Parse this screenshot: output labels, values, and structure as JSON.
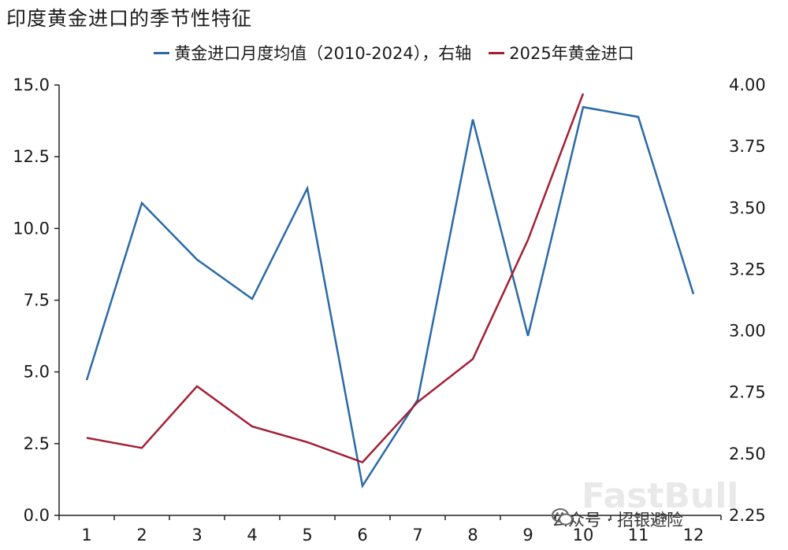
{
  "title": "印度黄金进口的季节性特征",
  "colors": {
    "blue": "#2a6aa8",
    "red": "#a31f34",
    "axis": "#222222"
  },
  "chart_data": {
    "type": "line",
    "categories": [
      "1",
      "2",
      "3",
      "4",
      "5",
      "6",
      "7",
      "8",
      "9",
      "10",
      "11",
      "12"
    ],
    "series": [
      {
        "name": "黄金进口月度均值（2010-2024），右轴",
        "axis": "right",
        "values": [
          2.8,
          3.52,
          3.29,
          3.13,
          3.58,
          2.37,
          2.72,
          3.86,
          2.98,
          3.91,
          3.87,
          3.15
        ]
      },
      {
        "name": "2025年黄金进口",
        "axis": "left",
        "values": [
          2.7,
          2.35,
          4.5,
          3.1,
          2.55,
          1.85,
          3.95,
          5.45,
          9.6,
          14.7,
          null,
          null
        ]
      }
    ],
    "left_axis": {
      "ylim": [
        0,
        15
      ],
      "ticks": [
        "0.0",
        "2.5",
        "5.0",
        "7.5",
        "10.0",
        "12.5",
        "15.0"
      ]
    },
    "right_axis": {
      "ylim": [
        2.25,
        4.0
      ],
      "ticks": [
        "2.25",
        "2.50",
        "2.75",
        "3.00",
        "3.25",
        "3.50",
        "3.75",
        "4.00"
      ]
    },
    "grid": false,
    "legend": "top-center"
  },
  "watermark": "FastBull",
  "source_label": "公众号 · 招银避险"
}
